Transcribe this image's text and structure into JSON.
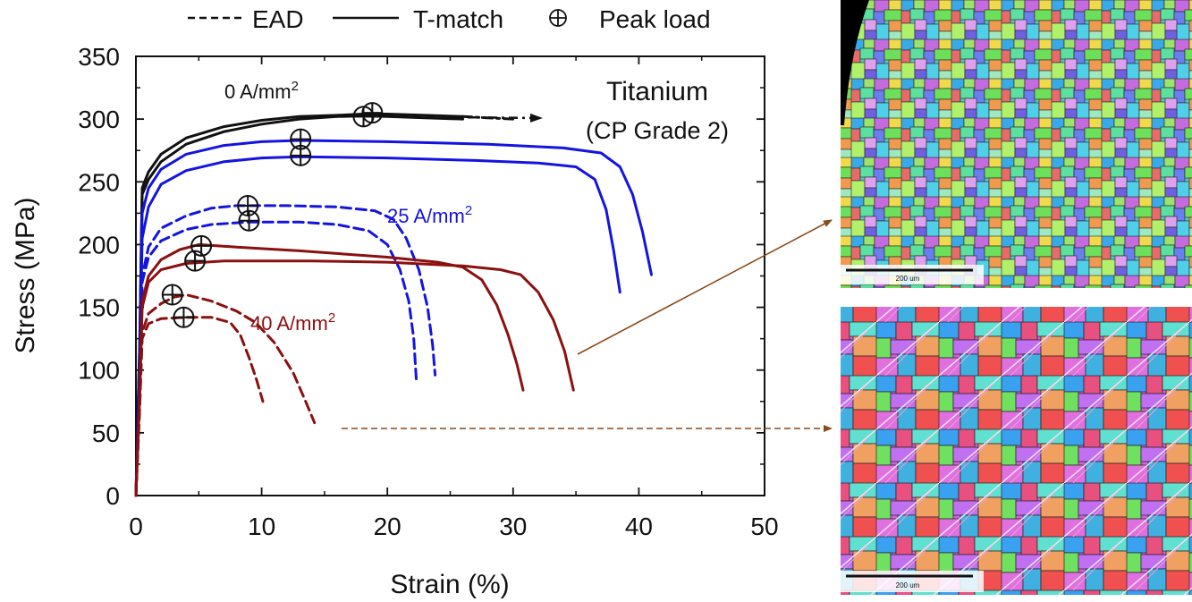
{
  "legend": {
    "ead_label": "EAD",
    "tmatch_label": "T-match",
    "peak_label": "Peak load"
  },
  "colors": {
    "black": "#111111",
    "blue": "#1414e0",
    "darkred": "#8b1010",
    "arrow": "#8a4a1a"
  },
  "annotations": {
    "material_line1": "Titanium",
    "material_line2": "(CP Grade 2)",
    "label_0": "0 A/mm",
    "label_25": "25 A/mm",
    "label_40": "40 A/mm",
    "sup": "2"
  },
  "micrographs": {
    "top_scale": "200 um",
    "bottom_scale": "200 um"
  },
  "chart_data": {
    "type": "line",
    "xlabel": "Strain (%)",
    "ylabel": "Stress (MPa)",
    "xlim": [
      0,
      50
    ],
    "ylim": [
      0,
      350
    ],
    "xticks": [
      0,
      10,
      20,
      30,
      40,
      50
    ],
    "yticks": [
      0,
      50,
      100,
      150,
      200,
      250,
      300,
      350
    ],
    "grid": false,
    "legend_position": "top",
    "series": [
      {
        "group": "0 A/mm2",
        "style": "solid",
        "color": "black",
        "points": [
          [
            0,
            0
          ],
          [
            0.3,
            120
          ],
          [
            0.5,
            245
          ],
          [
            1,
            258
          ],
          [
            2,
            272
          ],
          [
            4,
            285
          ],
          [
            7,
            294
          ],
          [
            10,
            299
          ],
          [
            13,
            302
          ],
          [
            16,
            303
          ],
          [
            18,
            304
          ],
          [
            20,
            304
          ],
          [
            23,
            303
          ],
          [
            26,
            302
          ]
        ]
      },
      {
        "group": "0 A/mm2",
        "style": "solid",
        "color": "black",
        "points": [
          [
            0,
            0
          ],
          [
            0.3,
            120
          ],
          [
            0.5,
            240
          ],
          [
            1,
            252
          ],
          [
            2,
            266
          ],
          [
            4,
            280
          ],
          [
            7,
            290
          ],
          [
            10,
            296
          ],
          [
            13,
            300
          ],
          [
            16,
            302
          ],
          [
            18,
            302.5
          ],
          [
            20,
            302
          ],
          [
            23,
            301
          ],
          [
            26,
            300
          ]
        ]
      },
      {
        "group": "0 A/mm2",
        "style": "dashdot",
        "color": "black",
        "points": [
          [
            26,
            302
          ],
          [
            28,
            301
          ],
          [
            30,
            300
          ]
        ]
      },
      {
        "group": "25 A/mm2",
        "style": "solid",
        "color": "blue",
        "points": [
          [
            0,
            0
          ],
          [
            0.3,
            100
          ],
          [
            0.5,
            225
          ],
          [
            1,
            245
          ],
          [
            2,
            260
          ],
          [
            4,
            272
          ],
          [
            7,
            279
          ],
          [
            10,
            282
          ],
          [
            13,
            283
          ],
          [
            20,
            282
          ],
          [
            28,
            280
          ],
          [
            34,
            277
          ],
          [
            37,
            273
          ],
          [
            38.5,
            262
          ],
          [
            39.5,
            240
          ],
          [
            40.3,
            210
          ],
          [
            41,
            176
          ]
        ]
      },
      {
        "group": "25 A/mm2",
        "style": "solid",
        "color": "blue",
        "points": [
          [
            0,
            0
          ],
          [
            0.3,
            100
          ],
          [
            0.5,
            205
          ],
          [
            1,
            230
          ],
          [
            2,
            248
          ],
          [
            4,
            259
          ],
          [
            7,
            266
          ],
          [
            10,
            269
          ],
          [
            13,
            270
          ],
          [
            20,
            269
          ],
          [
            27,
            267
          ],
          [
            32,
            265
          ],
          [
            35,
            262
          ],
          [
            36.5,
            252
          ],
          [
            37.4,
            228
          ],
          [
            38,
            195
          ],
          [
            38.5,
            162
          ]
        ]
      },
      {
        "group": "25 A/mm2",
        "style": "dashed",
        "color": "blue",
        "points": [
          [
            0,
            0
          ],
          [
            0.3,
            90
          ],
          [
            0.5,
            175
          ],
          [
            1,
            198
          ],
          [
            2,
            213
          ],
          [
            4,
            223
          ],
          [
            6,
            229
          ],
          [
            8,
            231
          ],
          [
            12,
            231
          ],
          [
            16,
            230
          ],
          [
            19,
            227
          ],
          [
            20.5,
            220
          ],
          [
            21.5,
            205
          ],
          [
            22.5,
            180
          ],
          [
            23.2,
            150
          ],
          [
            23.6,
            120
          ],
          [
            23.8,
            96
          ]
        ]
      },
      {
        "group": "25 A/mm2",
        "style": "dashed",
        "color": "blue",
        "points": [
          [
            0,
            0
          ],
          [
            0.3,
            90
          ],
          [
            0.5,
            170
          ],
          [
            1,
            190
          ],
          [
            2,
            203
          ],
          [
            4,
            212
          ],
          [
            6,
            216
          ],
          [
            9,
            218
          ],
          [
            13,
            218
          ],
          [
            16,
            216
          ],
          [
            18.5,
            211
          ],
          [
            20,
            200
          ],
          [
            21,
            180
          ],
          [
            21.7,
            155
          ],
          [
            22.1,
            125
          ],
          [
            22.3,
            93
          ]
        ]
      },
      {
        "group": "40 A/mm2",
        "style": "solid",
        "color": "darkred",
        "points": [
          [
            0,
            0
          ],
          [
            0.3,
            80
          ],
          [
            0.5,
            155
          ],
          [
            1,
            175
          ],
          [
            2,
            188
          ],
          [
            3.5,
            196
          ],
          [
            5,
            200
          ],
          [
            8,
            198
          ],
          [
            13,
            195
          ],
          [
            20,
            190
          ],
          [
            24,
            186
          ],
          [
            26,
            182
          ],
          [
            27.5,
            172
          ],
          [
            28.7,
            152
          ],
          [
            29.6,
            128
          ],
          [
            30.3,
            105
          ],
          [
            30.8,
            84
          ]
        ]
      },
      {
        "group": "40 A/mm2",
        "style": "solid",
        "color": "darkred",
        "points": [
          [
            0,
            0
          ],
          [
            0.3,
            80
          ],
          [
            0.5,
            150
          ],
          [
            1,
            170
          ],
          [
            2,
            180
          ],
          [
            4,
            185
          ],
          [
            7,
            187
          ],
          [
            14,
            187
          ],
          [
            20,
            186
          ],
          [
            26,
            183
          ],
          [
            29,
            180
          ],
          [
            30.6,
            176
          ],
          [
            32,
            162
          ],
          [
            33.2,
            140
          ],
          [
            34.1,
            115
          ],
          [
            34.8,
            84
          ]
        ]
      },
      {
        "group": "40 A/mm2",
        "style": "dashed",
        "color": "darkred",
        "points": [
          [
            0,
            0
          ],
          [
            0.3,
            70
          ],
          [
            0.5,
            130
          ],
          [
            1,
            145
          ],
          [
            2,
            153
          ],
          [
            3,
            158
          ],
          [
            4,
            160
          ],
          [
            6,
            155
          ],
          [
            8,
            147
          ],
          [
            9.5,
            138
          ],
          [
            11,
            122
          ],
          [
            12.5,
            98
          ],
          [
            13.5,
            75
          ],
          [
            14.2,
            58
          ]
        ]
      },
      {
        "group": "40 A/mm2",
        "style": "dashed",
        "color": "darkred",
        "points": [
          [
            0,
            0
          ],
          [
            0.3,
            70
          ],
          [
            0.5,
            125
          ],
          [
            1,
            137
          ],
          [
            2,
            141
          ],
          [
            4,
            142
          ],
          [
            6,
            142
          ],
          [
            7.5,
            138
          ],
          [
            8.3,
            128
          ],
          [
            9,
            110
          ],
          [
            9.6,
            92
          ],
          [
            10.1,
            75
          ]
        ]
      }
    ],
    "peak_load": [
      [
        18.1,
        302
      ],
      [
        18.8,
        305
      ],
      [
        13.1,
        284
      ],
      [
        13.1,
        271
      ],
      [
        8.9,
        231
      ],
      [
        9.0,
        219
      ],
      [
        5.2,
        199
      ],
      [
        4.7,
        187
      ],
      [
        2.9,
        160
      ],
      [
        3.8,
        142
      ]
    ]
  }
}
